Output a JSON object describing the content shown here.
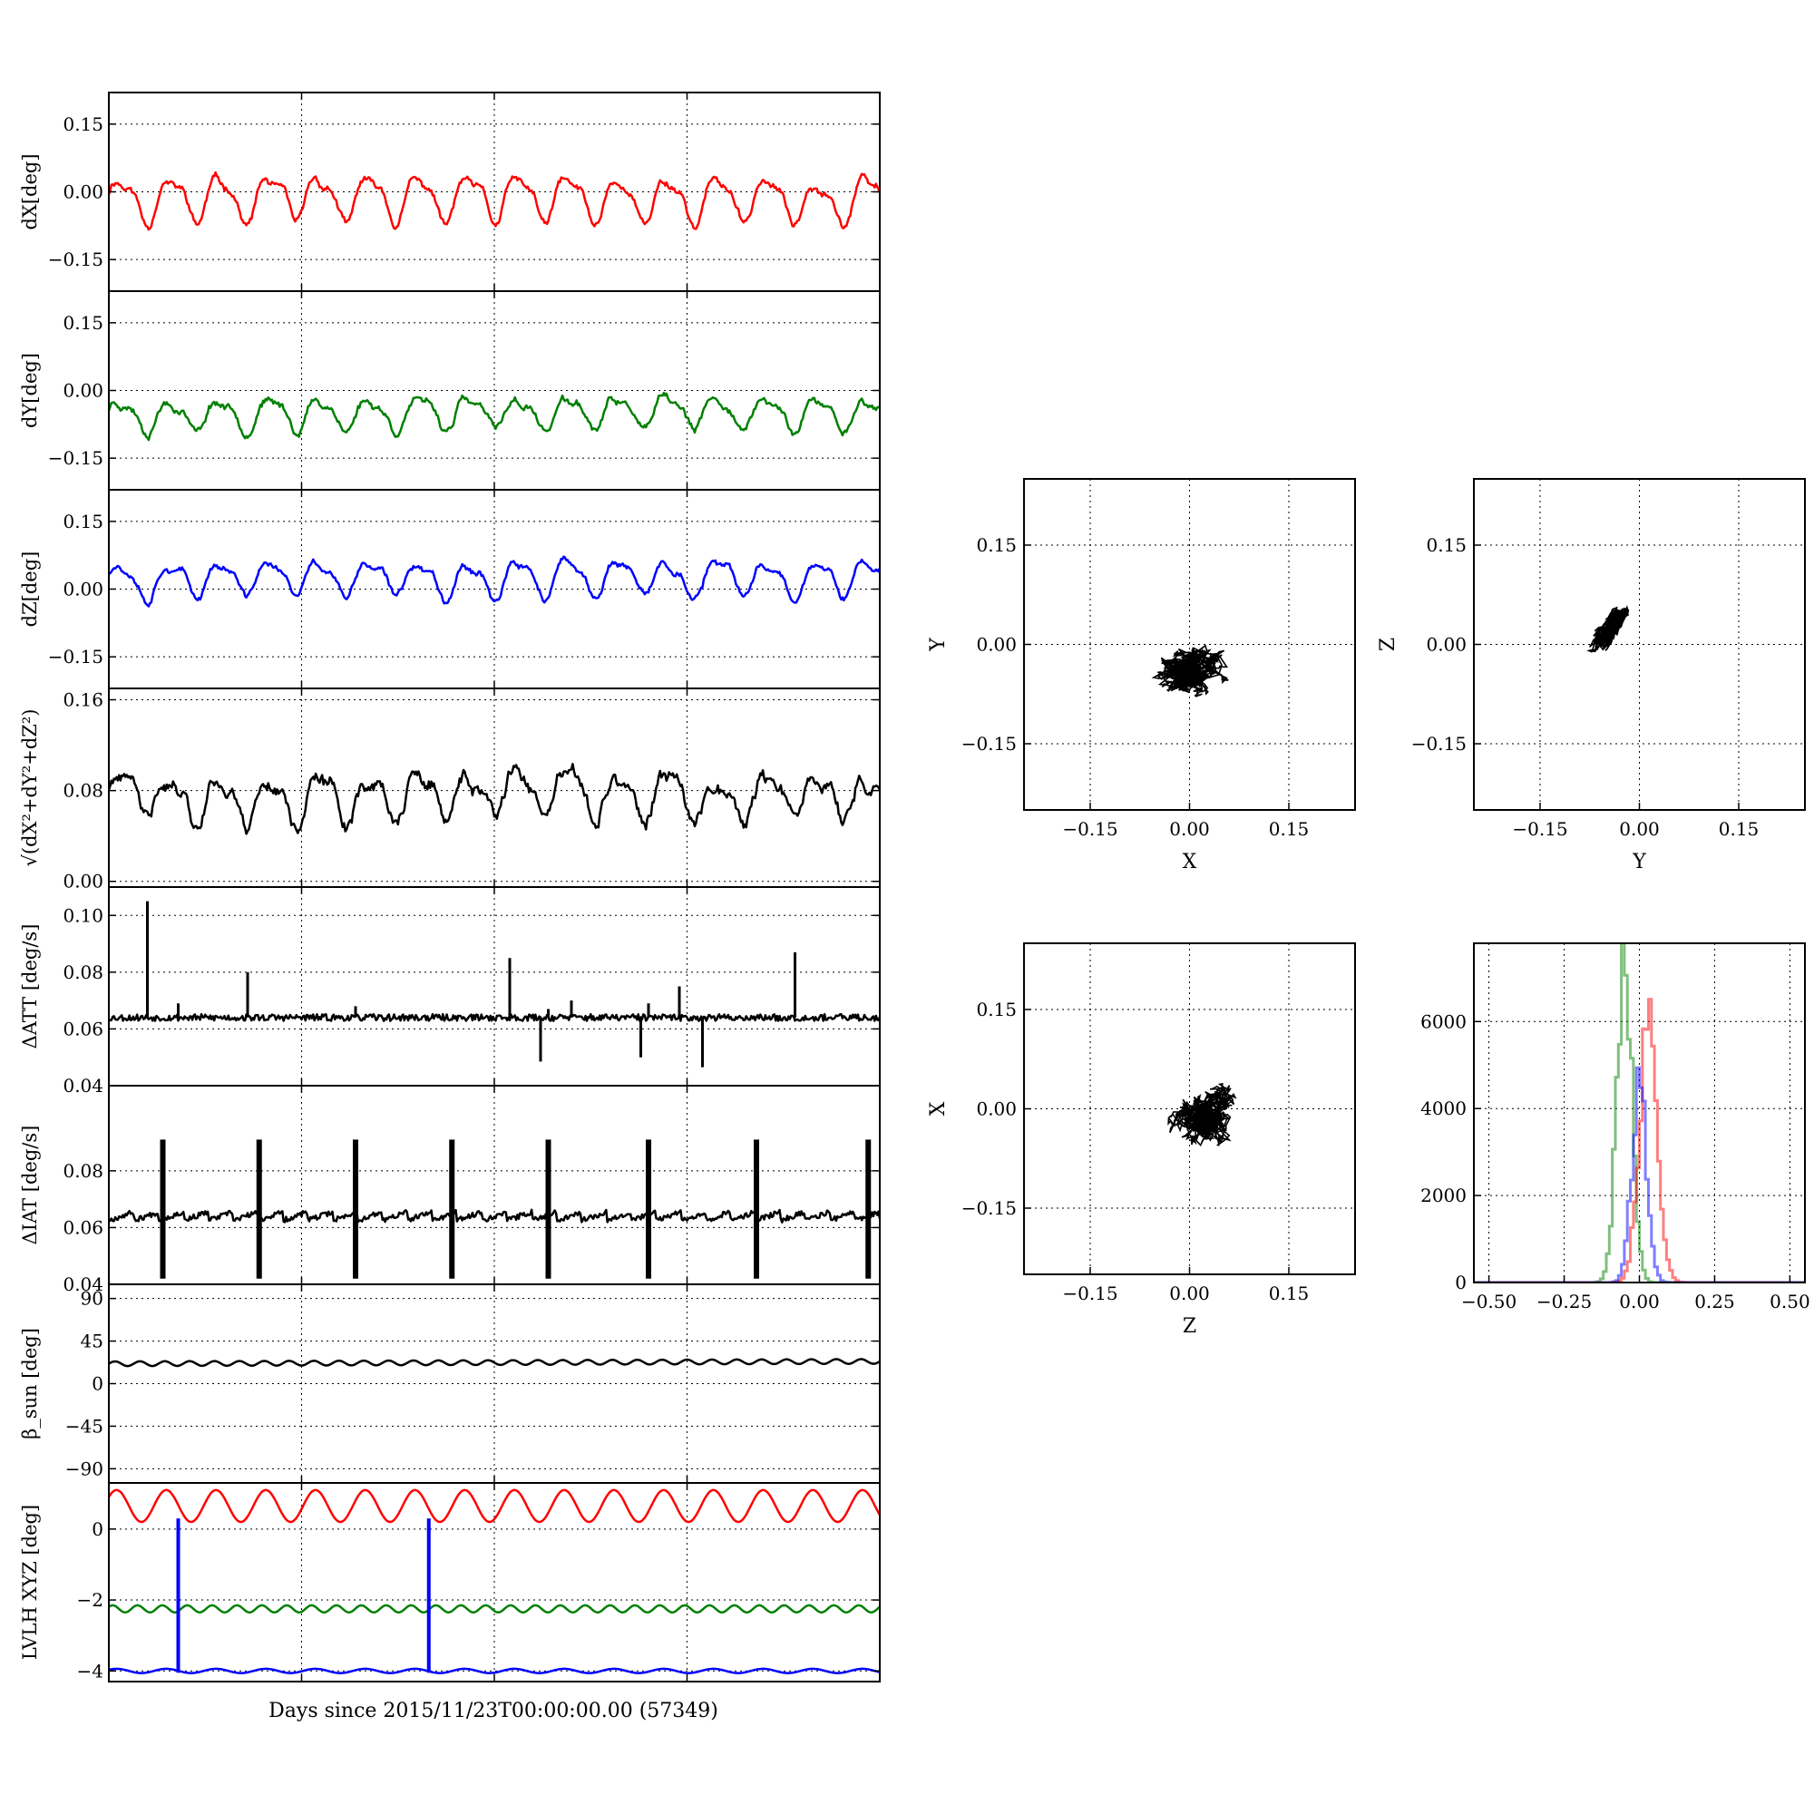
{
  "figure": {
    "xlabel": "Days since 2015/11/23T00:00:00.00 (57349)",
    "colors": {
      "red": "#ff0000",
      "green": "#008000",
      "blue": "#0000ff",
      "black": "#000000"
    }
  },
  "chart_data": [
    {
      "id": "dX",
      "type": "line",
      "ylabel": "dX[deg]",
      "ylim": [
        -0.22,
        0.22
      ],
      "yticks": [
        0.15,
        0.0,
        -0.15
      ],
      "ytick_labels": [
        "0.15",
        "0.00",
        "−0.15"
      ],
      "xlim": [
        0,
        1
      ],
      "grid": true,
      "series": [
        {
          "color": "#ff0000"
        }
      ],
      "params": {
        "mean": -0.015,
        "amp": 0.045,
        "cycles": 15.5,
        "noise": 0.01,
        "seed": 11
      }
    },
    {
      "id": "dY",
      "type": "line",
      "ylabel": "dY[deg]",
      "ylim": [
        -0.22,
        0.22
      ],
      "yticks": [
        0.15,
        0.0,
        -0.15
      ],
      "ytick_labels": [
        "0.15",
        "0.00",
        "−0.15"
      ],
      "xlim": [
        0,
        1
      ],
      "grid": true,
      "series": [
        {
          "color": "#008000"
        }
      ],
      "params": {
        "mean": -0.05,
        "amp": 0.03,
        "cycles": 15.5,
        "noise": 0.01,
        "seed": 23
      }
    },
    {
      "id": "dZ",
      "type": "line",
      "ylabel": "dZ[deg]",
      "ylim": [
        -0.22,
        0.22
      ],
      "yticks": [
        0.15,
        0.0,
        -0.15
      ],
      "ytick_labels": [
        "0.15",
        "0.00",
        "−0.15"
      ],
      "xlim": [
        0,
        1
      ],
      "grid": true,
      "series": [
        {
          "color": "#0000ff"
        }
      ],
      "params": {
        "mean": 0.025,
        "amp": 0.035,
        "cycles": 15.5,
        "noise": 0.009,
        "seed": 37
      }
    },
    {
      "id": "total",
      "type": "line",
      "ylabel": "√(dX²+dY²+dZ²)",
      "ylim": [
        -0.005,
        0.17
      ],
      "yticks": [
        0.16,
        0.08,
        0.0
      ],
      "ytick_labels": [
        "0.16",
        "0.08",
        "0.00"
      ],
      "xlim": [
        0,
        1
      ],
      "grid": true,
      "series": [
        {
          "color": "#000000"
        }
      ],
      "params": {
        "mean": 0.075,
        "amp": 0.018,
        "cycles": 15.5,
        "noise": 0.008,
        "seed": 41
      }
    },
    {
      "id": "datt",
      "type": "line",
      "ylabel": "ΔATT [deg/s]",
      "ylim": [
        0.04,
        0.11
      ],
      "yticks": [
        0.1,
        0.08,
        0.06,
        0.04
      ],
      "ytick_labels": [
        "0.10",
        "0.08",
        "0.06",
        "0.04"
      ],
      "xlim": [
        0,
        1
      ],
      "grid": true,
      "series": [
        {
          "color": "#000000"
        }
      ],
      "params": {
        "base": 0.064,
        "noise": 0.0012,
        "seed": 53
      },
      "spikes": [
        [
          0.05,
          0.105
        ],
        [
          0.09,
          0.069
        ],
        [
          0.18,
          0.08
        ],
        [
          0.32,
          0.068
        ],
        [
          0.52,
          0.085
        ],
        [
          0.57,
          0.067
        ],
        [
          0.6,
          0.07
        ],
        [
          0.7,
          0.069
        ],
        [
          0.74,
          0.075
        ],
        [
          0.89,
          0.087
        ],
        [
          0.56,
          0.0485
        ],
        [
          0.69,
          0.05
        ],
        [
          0.77,
          0.0465
        ]
      ]
    },
    {
      "id": "diat",
      "type": "line",
      "ylabel": "ΔIAT [deg/s]",
      "ylim": [
        0.04,
        0.11
      ],
      "yticks": [
        0.08,
        0.06,
        0.04
      ],
      "ytick_labels": [
        "0.08",
        "0.06",
        "0.04"
      ],
      "xlim": [
        0,
        1
      ],
      "grid": true,
      "series": [
        {
          "color": "#000000"
        }
      ],
      "params": {
        "base": 0.064,
        "ramp": 0.003,
        "noise": 0.0009,
        "seed": 67
      },
      "events": [
        0.07,
        0.195,
        0.32,
        0.445,
        0.57,
        0.7,
        0.84,
        0.985
      ],
      "event_range": [
        0.042,
        0.091
      ]
    },
    {
      "id": "bsun",
      "type": "line",
      "ylabel": "β_sun [deg]",
      "ylim": [
        -105,
        105
      ],
      "yticks": [
        90,
        45,
        0,
        -45,
        -90
      ],
      "ytick_labels": [
        "90",
        "45",
        "0",
        "−45",
        "−90"
      ],
      "xlim": [
        0,
        1
      ],
      "grid": true,
      "series": [
        {
          "color": "#000000"
        }
      ],
      "params": {
        "mean": 21,
        "amp": 2.5,
        "cycles": 31,
        "drift": 2.5
      }
    },
    {
      "id": "lvlh",
      "type": "line",
      "ylabel": "LVLH XYZ [deg]",
      "ylim": [
        -4.3,
        1.3
      ],
      "yticks": [
        0,
        -2,
        -4
      ],
      "ytick_labels": [
        "0",
        "−2",
        "−4"
      ],
      "xlim": [
        0,
        1
      ],
      "grid": true,
      "series": [
        {
          "color": "#ff0000",
          "mean": 0.65,
          "amp": 0.45,
          "cycles": 15.5
        },
        {
          "color": "#008000",
          "mean": -2.25,
          "amp": 0.1,
          "cycles": 31
        },
        {
          "color": "#0000ff",
          "mean": -4.0,
          "amp": 0.06,
          "cycles": 15.5
        }
      ],
      "drops": [
        0.09,
        0.415
      ]
    }
  ],
  "scatter_data": [
    {
      "id": "xy",
      "type": "scatter",
      "xlabel": "X",
      "ylabel": "Y",
      "xlim": [
        -0.25,
        0.25
      ],
      "ylim": [
        -0.25,
        0.25
      ],
      "ticks": [
        -0.15,
        0.0,
        0.15
      ],
      "tick_labels": [
        "−0.15",
        "0.00",
        "0.15"
      ],
      "center": [
        0.0,
        -0.04
      ],
      "spread": [
        0.05,
        0.035
      ],
      "corr": 0.2,
      "seed": 5
    },
    {
      "id": "yz",
      "type": "scatter",
      "xlabel": "Y",
      "ylabel": "Z",
      "xlim": [
        -0.25,
        0.25
      ],
      "ylim": [
        -0.25,
        0.25
      ],
      "ticks": [
        -0.15,
        0.0,
        0.15
      ],
      "tick_labels": [
        "−0.15",
        "0.00",
        "0.15"
      ],
      "center": [
        -0.045,
        0.025
      ],
      "spread": [
        0.025,
        0.035
      ],
      "corr": 0.75,
      "seed": 9
    },
    {
      "id": "zx",
      "type": "scatter",
      "xlabel": "Z",
      "ylabel": "X",
      "xlim": [
        -0.25,
        0.25
      ],
      "ylim": [
        -0.25,
        0.25
      ],
      "ticks": [
        -0.15,
        0.0,
        0.15
      ],
      "tick_labels": [
        "−0.15",
        "0.00",
        "0.15"
      ],
      "center": [
        0.02,
        -0.01
      ],
      "spread": [
        0.038,
        0.042
      ],
      "corr": 0.05,
      "seed": 13
    }
  ],
  "histogram": {
    "type": "histogram",
    "xlim": [
      -0.55,
      0.55
    ],
    "ylim": [
      0,
      7800
    ],
    "xticks": [
      -0.5,
      -0.25,
      0.0,
      0.25,
      0.5
    ],
    "xtick_labels": [
      "−0.50",
      "−0.25",
      "0.00",
      "0.25",
      "0.50"
    ],
    "yticks": [
      0,
      2000,
      4000,
      6000
    ],
    "ytick_labels": [
      "0",
      "2000",
      "4000",
      "6000"
    ],
    "series": [
      {
        "color": "#008000",
        "peak": 7500,
        "center": -0.05,
        "sigma": 0.025
      },
      {
        "color": "#ff0000",
        "peak": 5900,
        "center": 0.03,
        "sigma": 0.03
      },
      {
        "color": "#0000ff",
        "peak": 4500,
        "center": 0.0,
        "sigma": 0.025
      }
    ]
  }
}
